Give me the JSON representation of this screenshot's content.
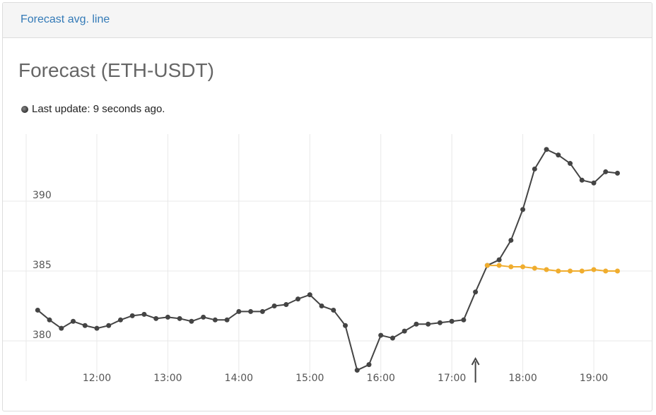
{
  "header": {
    "link_label": "Forecast avg. line"
  },
  "title": "Forecast (ETH-USDT)",
  "status": {
    "text": "Last update: 9 seconds ago."
  },
  "colors": {
    "actual": "#444444",
    "forecast": "#f0ad2e",
    "link": "#337ab7",
    "grid": "#e8e8e8"
  },
  "chart_data": {
    "type": "line",
    "title": "Forecast (ETH-USDT)",
    "xlabel": "",
    "ylabel": "",
    "x_ticks": [
      "12:00",
      "13:00",
      "14:00",
      "15:00",
      "16:00",
      "17:00",
      "18:00",
      "19:00"
    ],
    "y_ticks": [
      380,
      385,
      390
    ],
    "xlim": [
      "11:05",
      "19:25"
    ],
    "ylim": [
      377.2,
      394.8
    ],
    "grid": true,
    "marker_time": "17:20",
    "series": [
      {
        "key": "actual",
        "x": [
          "11:10",
          "11:20",
          "11:30",
          "11:40",
          "11:50",
          "12:00",
          "12:10",
          "12:20",
          "12:30",
          "12:40",
          "12:50",
          "13:00",
          "13:10",
          "13:20",
          "13:30",
          "13:40",
          "13:50",
          "14:00",
          "14:10",
          "14:20",
          "14:30",
          "14:40",
          "14:50",
          "15:00",
          "15:10",
          "15:20",
          "15:30",
          "15:40",
          "15:50",
          "16:00",
          "16:10",
          "16:20",
          "16:30",
          "16:40",
          "16:50",
          "17:00",
          "17:10",
          "17:20",
          "17:30",
          "17:40",
          "17:50",
          "18:00",
          "18:10",
          "18:20",
          "18:30",
          "18:40",
          "18:50",
          "19:00",
          "19:10",
          "19:20"
        ],
        "values": [
          382.2,
          381.5,
          380.9,
          381.4,
          381.1,
          380.9,
          381.1,
          381.5,
          381.8,
          381.9,
          381.6,
          381.7,
          381.6,
          381.4,
          381.7,
          381.5,
          381.5,
          382.1,
          382.1,
          382.1,
          382.5,
          382.6,
          383.0,
          383.3,
          382.5,
          382.2,
          381.1,
          377.9,
          378.3,
          380.4,
          380.2,
          380.7,
          381.2,
          381.2,
          381.3,
          381.4,
          381.5,
          383.5,
          385.4,
          385.8,
          387.2,
          389.4,
          392.3,
          393.7,
          393.3,
          392.7,
          391.5,
          391.3,
          392.1,
          392.0
        ]
      },
      {
        "key": "forecast",
        "x": [
          "17:30",
          "17:40",
          "17:50",
          "18:00",
          "18:10",
          "18:20",
          "18:30",
          "18:40",
          "18:50",
          "19:00",
          "19:10",
          "19:20"
        ],
        "values": [
          385.4,
          385.4,
          385.3,
          385.3,
          385.2,
          385.1,
          385.0,
          385.0,
          385.0,
          385.1,
          385.0,
          385.0
        ]
      }
    ]
  }
}
